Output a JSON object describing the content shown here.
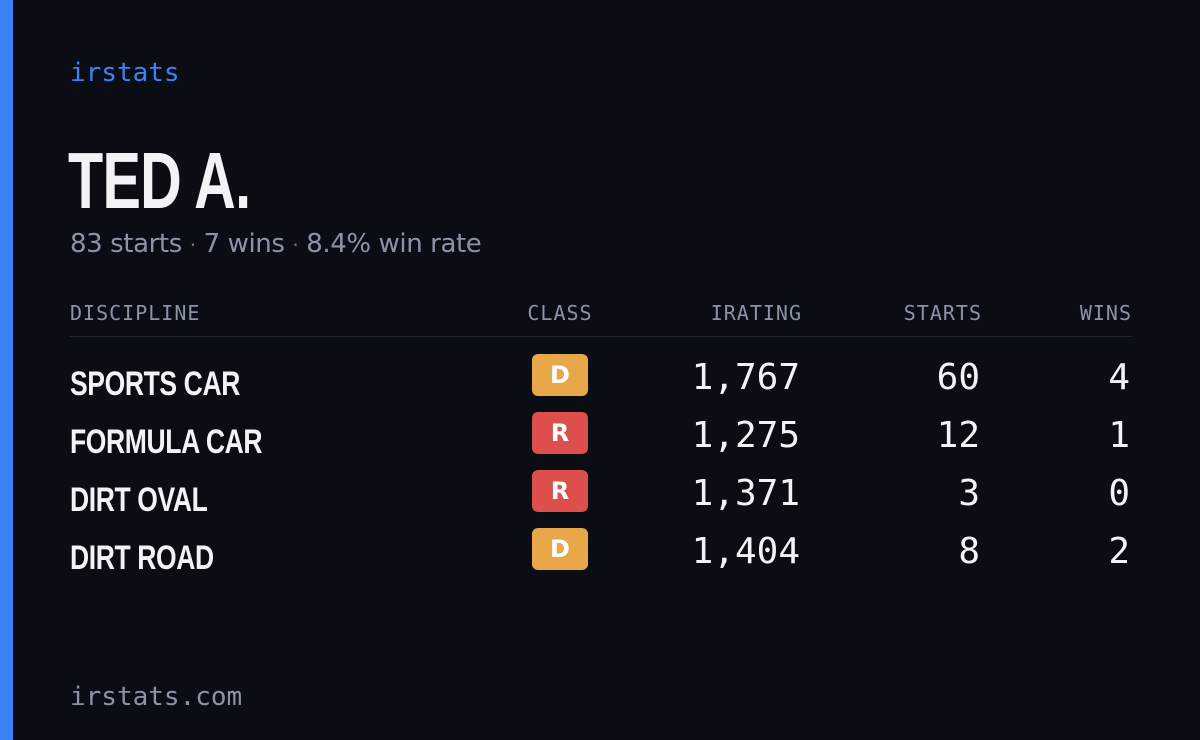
{
  "brand": "irstats",
  "driver": {
    "name": "TED A."
  },
  "summary": {
    "starts": "83 starts",
    "wins": "7 wins",
    "win_rate": "8.4% win rate",
    "separator": "·"
  },
  "table": {
    "headers": {
      "discipline": "DISCIPLINE",
      "class": "CLASS",
      "irating": "IRATING",
      "starts": "STARTS",
      "wins": "WINS"
    },
    "rows": [
      {
        "discipline": "SPORTS CAR",
        "class": "D",
        "class_color": "#e8a84a",
        "irating": "1,767",
        "starts": "60",
        "wins": "4"
      },
      {
        "discipline": "FORMULA CAR",
        "class": "R",
        "class_color": "#dc4f4a",
        "irating": "1,275",
        "starts": "12",
        "wins": "1"
      },
      {
        "discipline": "DIRT OVAL",
        "class": "R",
        "class_color": "#dc4f4a",
        "irating": "1,371",
        "starts": "3",
        "wins": "0"
      },
      {
        "discipline": "DIRT ROAD",
        "class": "D",
        "class_color": "#e8a84a",
        "irating": "1,404",
        "starts": "8",
        "wins": "2"
      }
    ]
  },
  "footer": {
    "domain": "irstats.com"
  },
  "colors": {
    "background": "#0a0d14",
    "accent": "#3b82f6",
    "class_d": "#e8a84a",
    "class_r": "#dc4f4a"
  }
}
